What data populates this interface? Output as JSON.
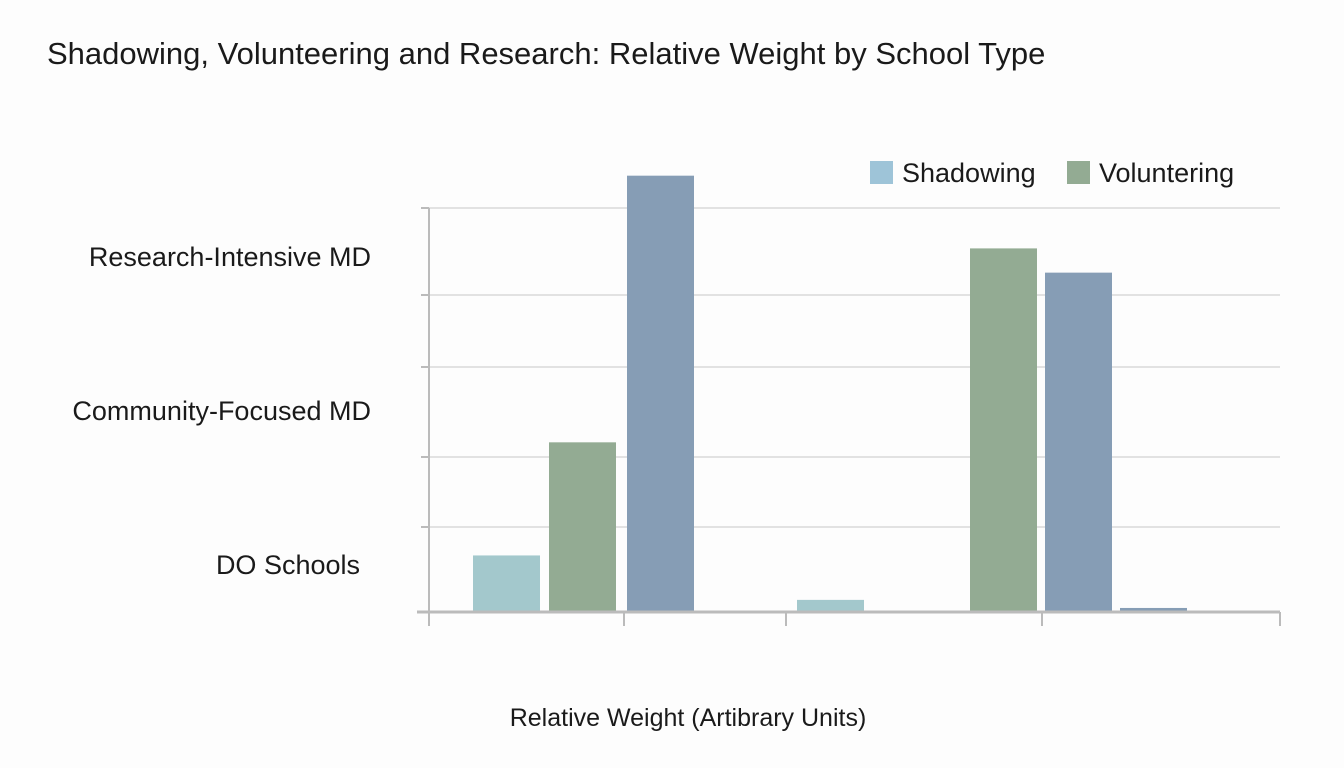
{
  "chart_data": {
    "type": "bar",
    "title": "Shadowing, Volunteering and Research: Relative Weight by School Type",
    "xlabel": "Relative Weight (Artibrary Units)",
    "ylabel": "",
    "y_tick_labels": [
      "Research-Intensive MD",
      "Community-Focused MD",
      "DO Schools"
    ],
    "legend": {
      "placement": "top-right",
      "entries": [
        {
          "name": "Shadowing",
          "color": "#9ec4d8"
        },
        {
          "name": "Voluntering",
          "color": "#93ab93"
        }
      ]
    },
    "grid": true,
    "ylim": [
      0,
      110
    ],
    "bars": [
      {
        "series": "Shadowing",
        "value": 14,
        "color": "#a3c8cc"
      },
      {
        "series": "Voluntering",
        "value": 42,
        "color": "#93ab93"
      },
      {
        "series": "Research",
        "value": 108,
        "color": "#869db5"
      },
      {
        "series": "Shadowing",
        "value": 3,
        "color": "#a3c8cc"
      },
      {
        "series": "Voluntering",
        "value": 90,
        "color": "#93ab93"
      },
      {
        "series": "Research",
        "value": 84,
        "color": "#869db5"
      },
      {
        "series": "Research",
        "value": 1,
        "color": "#869db5"
      }
    ]
  }
}
